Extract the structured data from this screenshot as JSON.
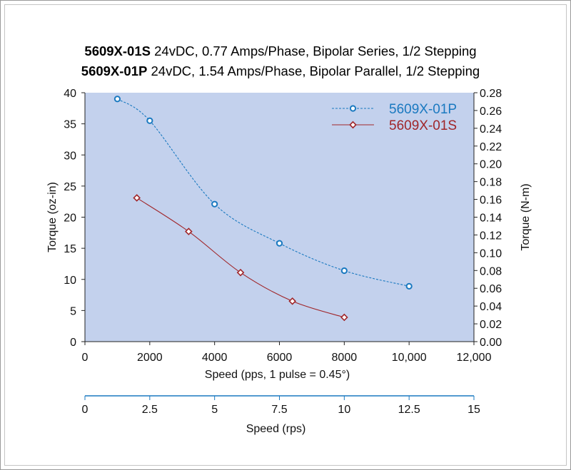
{
  "titles": [
    {
      "model": "5609X-01S",
      "spec": " 24vDC, 0.77 Amps/Phase, Bipolar Series, 1/2 Stepping"
    },
    {
      "model": "5609X-01P",
      "spec": " 24vDC, 1.54 Amps/Phase, Bipolar Parallel, 1/2 Stepping"
    }
  ],
  "colors": {
    "plot_bg": "#c3d1ed",
    "series_p": "#1a79c0",
    "series_s": "#a0262a",
    "axis_accent": "#1a79c0"
  },
  "chart_data": {
    "type": "line",
    "title": "5609X-01S 24vDC, 0.77 Amps/Phase, Bipolar Series, 1/2 Stepping / 5609X-01P 24vDC, 1.54 Amps/Phase, Bipolar Parallel, 1/2 Stepping",
    "xlabel": "Speed (pps, 1 pulse = 0.45°)",
    "xlim": [
      0,
      12000
    ],
    "x_ticks": [
      "0",
      "2000",
      "4000",
      "6000",
      "8000",
      "10,000",
      "12,000"
    ],
    "ylabel": "Torque (oz-in)",
    "ylim": [
      0,
      40
    ],
    "y_ticks": [
      "0",
      "5",
      "10",
      "15",
      "20",
      "25",
      "30",
      "35",
      "40"
    ],
    "y2label": "Torque (N-m)",
    "y2lim": [
      0,
      0.28
    ],
    "y2_ticks": [
      "0.00",
      "0.02",
      "0.04",
      "0.06",
      "0.08",
      "0.10",
      "0.12",
      "0.14",
      "0.16",
      "0.18",
      "0.20",
      "0.22",
      "0.24",
      "0.26",
      "0.28"
    ],
    "x2label": "Speed (rps)",
    "x2lim": [
      0,
      15
    ],
    "x2_ticks": [
      "0",
      "2.5",
      "5",
      "7.5",
      "10",
      "12.5",
      "15"
    ],
    "grid": false,
    "legend_position": "top-right",
    "series": [
      {
        "name": "5609X-01P",
        "style": "dashed",
        "marker": "circle",
        "color": "#1a79c0",
        "x": [
          1000,
          2000,
          4000,
          6000,
          8000,
          10000
        ],
        "y": [
          39.0,
          35.5,
          22.1,
          15.8,
          11.4,
          8.9
        ]
      },
      {
        "name": "5609X-01S",
        "style": "solid",
        "marker": "diamond",
        "color": "#a0262a",
        "x": [
          1600,
          3200,
          4800,
          6400,
          8000
        ],
        "y": [
          23.1,
          17.7,
          11.1,
          6.5,
          3.9
        ]
      }
    ]
  }
}
